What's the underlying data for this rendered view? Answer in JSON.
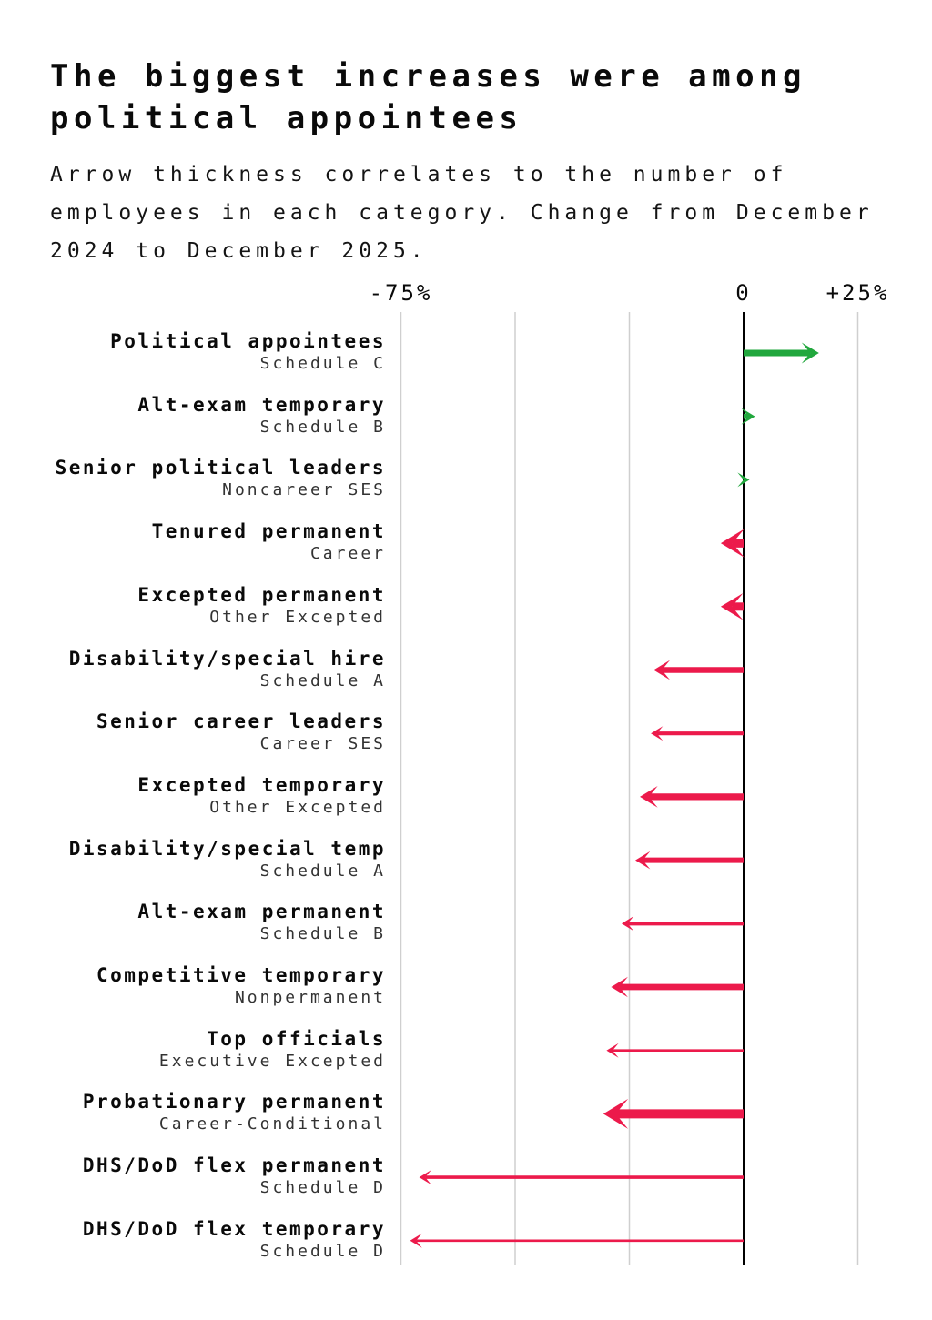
{
  "header": {
    "title": "The biggest increases were among\npolitical appointees",
    "subtitle": "Arrow thickness correlates to the number of\nemployees in each category. Change from December\n2024 to December 2025."
  },
  "chart_data": {
    "type": "bar",
    "variant": "arrow-change-chart",
    "title": "The biggest increases were among political appointees",
    "subtitle": "Arrow thickness correlates to the number of employees in each category. Change from December 2024 to December 2025.",
    "unit": "percent change",
    "period": "December 2024 to December 2025",
    "encoding_note": "Arrow thickness correlates to the number of employees in each category",
    "positive_color": "#21a73d",
    "negative_color": "#ec1a4b",
    "gridline_color": "#cfcfcf",
    "axis_color": "#000000",
    "axis": {
      "ticks": [
        {
          "label": "-75%",
          "value": -75
        },
        {
          "label": "0",
          "value": 0
        },
        {
          "label": "+25%",
          "value": 25
        }
      ],
      "gridlines_pct": [
        -75,
        -50,
        -25,
        0,
        25
      ],
      "xlim": [
        -78,
        28
      ],
      "grid": true
    },
    "rows": [
      {
        "label": "Political appointees",
        "sublabel": "Schedule C",
        "change_pct": 16.5,
        "thickness_px": 7
      },
      {
        "label": "Alt-exam temporary",
        "sublabel": "Schedule B",
        "change_pct": 2.5,
        "thickness_px": 5.5
      },
      {
        "label": "Senior political leaders",
        "sublabel": "Noncareer SES",
        "change_pct": 1.3,
        "thickness_px": 4.2
      },
      {
        "label": "Tenured permanent",
        "sublabel": "Career",
        "change_pct": -5,
        "thickness_px": 9.5
      },
      {
        "label": "Excepted permanent",
        "sublabel": "Other Excepted",
        "change_pct": -5,
        "thickness_px": 9
      },
      {
        "label": "Disability/special hire",
        "sublabel": "Schedule A",
        "change_pct": -19.7,
        "thickness_px": 6.6
      },
      {
        "label": "Senior career leaders",
        "sublabel": "Career SES",
        "change_pct": -20.3,
        "thickness_px": 4.2
      },
      {
        "label": "Excepted temporary",
        "sublabel": "Other Excepted",
        "change_pct": -22.7,
        "thickness_px": 7.2
      },
      {
        "label": "Disability/special temp",
        "sublabel": "Schedule A",
        "change_pct": -23.7,
        "thickness_px": 6
      },
      {
        "label": "Alt-exam permanent",
        "sublabel": "Schedule B",
        "change_pct": -26.7,
        "thickness_px": 4.2
      },
      {
        "label": "Competitive temporary",
        "sublabel": "Nonpermanent",
        "change_pct": -29,
        "thickness_px": 6.8
      },
      {
        "label": "Top officials",
        "sublabel": "Executive Excepted",
        "change_pct": -30,
        "thickness_px": 2.6
      },
      {
        "label": "Probationary permanent",
        "sublabel": "Career-Conditional",
        "change_pct": -30.7,
        "thickness_px": 10
      },
      {
        "label": "DHS/DoD flex permanent",
        "sublabel": "Schedule D",
        "change_pct": -71,
        "thickness_px": 3.6
      },
      {
        "label": "DHS/DoD flex temporary",
        "sublabel": "Schedule D",
        "change_pct": -73,
        "thickness_px": 2.7
      }
    ]
  }
}
